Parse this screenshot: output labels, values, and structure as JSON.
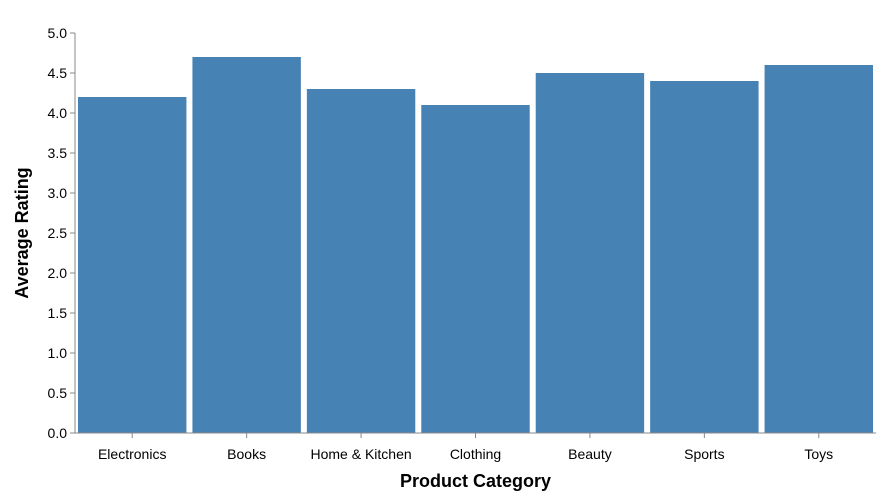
{
  "chart_data": {
    "type": "bar",
    "categories": [
      "Electronics",
      "Books",
      "Home & Kitchen",
      "Clothing",
      "Beauty",
      "Sports",
      "Toys"
    ],
    "values": [
      4.2,
      4.7,
      4.3,
      4.1,
      4.5,
      4.4,
      4.6
    ],
    "xlabel": "Product Category",
    "ylabel": "Average Rating",
    "ylim": [
      0,
      5
    ],
    "yticks": [
      "0.0",
      "0.5",
      "1.0",
      "1.5",
      "2.0",
      "2.5",
      "3.0",
      "3.5",
      "4.0",
      "4.5",
      "5.0"
    ],
    "grid": false,
    "legend": "none",
    "bar_color": "#4682b4",
    "axis_color": "#888888"
  }
}
